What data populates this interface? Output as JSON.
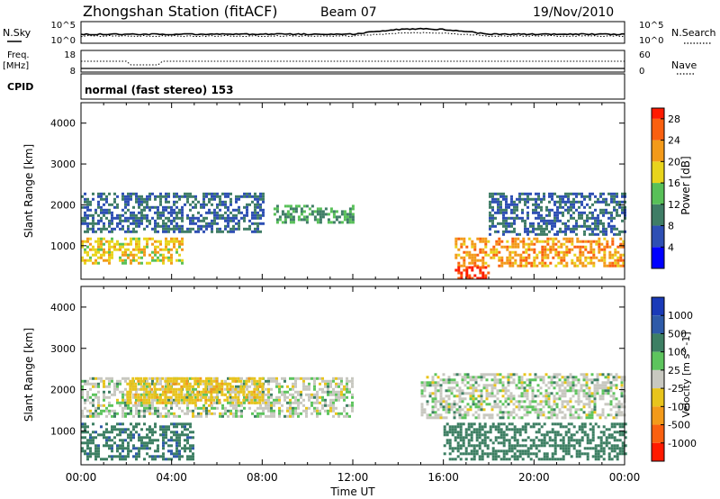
{
  "header": {
    "station": "Zhongshan Station (fitACF)",
    "beam": "Beam 07",
    "date": "19/Nov/2010"
  },
  "noise_panel": {
    "left_label": "N.Sky",
    "right_label": "N.Search",
    "ticks_left": [
      "10^5",
      "10^0"
    ],
    "ticks_right": [
      "10^5",
      "10^0"
    ]
  },
  "freq_panel": {
    "left_label": "Freq.",
    "unit": "[MHz]",
    "right_label": "Nave",
    "ticks_left": [
      "18",
      "8"
    ],
    "ticks_right": [
      "60",
      "0"
    ]
  },
  "cpid": {
    "label": "CPID",
    "text": "normal (fast stereo) 153"
  },
  "colors": {
    "power_scale": [
      "#0000ff",
      "#2e4fb4",
      "#3f7d66",
      "#58c058",
      "#e8d41c",
      "#f39a1a",
      "#fa6010",
      "#ff1a00"
    ],
    "velocity_scale": [
      "#1a3ab8",
      "#2e5aa8",
      "#3d7f63",
      "#5dc45d",
      "#c8c8c0",
      "#e8c41c",
      "#f39a1a",
      "#fa6010",
      "#ff1a00"
    ]
  },
  "chart_data": [
    {
      "type": "heatmap",
      "title": "",
      "xlabel": "",
      "ylabel": "Slant Range [km]",
      "xlim": [
        "00:00",
        "24:00"
      ],
      "ylim": [
        180,
        4500
      ],
      "x_ticks": [
        "00:00",
        "04:00",
        "08:00",
        "12:00",
        "16:00",
        "20:00",
        "00:00"
      ],
      "y_ticks": [
        1000,
        2000,
        3000,
        4000
      ],
      "colorbar": {
        "label": "Power [dB]",
        "ticks": [
          4,
          8,
          12,
          16,
          20,
          24,
          28
        ],
        "range": [
          0,
          30
        ]
      },
      "regions": [
        {
          "t_start": 0.0,
          "t_end": 8.0,
          "range_lo": 1350,
          "range_hi": 2300,
          "level": 8
        },
        {
          "t_start": 8.5,
          "t_end": 12.0,
          "range_lo": 1600,
          "range_hi": 2000,
          "level": 12
        },
        {
          "t_start": 0.0,
          "t_end": 4.5,
          "range_lo": 600,
          "range_hi": 1200,
          "level": 18
        },
        {
          "t_start": 16.5,
          "t_end": 24.0,
          "range_lo": 500,
          "range_hi": 1200,
          "level": 22
        },
        {
          "t_start": 16.5,
          "t_end": 18.0,
          "range_lo": 200,
          "range_hi": 500,
          "level": 28
        },
        {
          "t_start": 18.0,
          "t_end": 24.0,
          "range_lo": 1300,
          "range_hi": 2300,
          "level": 8
        }
      ]
    },
    {
      "type": "heatmap",
      "title": "",
      "xlabel": "Time UT",
      "ylabel": "Slant Range [km]",
      "xlim": [
        "00:00",
        "24:00"
      ],
      "ylim": [
        180,
        4500
      ],
      "x_ticks": [
        "00:00",
        "04:00",
        "08:00",
        "12:00",
        "16:00",
        "20:00",
        "00:00"
      ],
      "y_ticks": [
        1000,
        2000,
        3000,
        4000
      ],
      "colorbar": {
        "label": "Velocity [m s^-1]",
        "ticks": [
          "1000",
          "500",
          "100",
          "25",
          "-25",
          "-100",
          "-500",
          "-1000"
        ]
      },
      "regions": [
        {
          "t_start": 0.0,
          "t_end": 12.0,
          "range_lo": 1350,
          "range_hi": 2300,
          "level": 0
        },
        {
          "t_start": 0.0,
          "t_end": 5.0,
          "range_lo": 300,
          "range_hi": 1200,
          "level": 80
        },
        {
          "t_start": 16.0,
          "t_end": 24.0,
          "range_lo": 300,
          "range_hi": 1200,
          "level": 60
        },
        {
          "t_start": 2.0,
          "t_end": 8.0,
          "range_lo": 1700,
          "range_hi": 2300,
          "level": -80
        },
        {
          "t_start": 15.0,
          "t_end": 24.0,
          "range_lo": 1300,
          "range_hi": 2400,
          "level": 0
        }
      ]
    }
  ]
}
